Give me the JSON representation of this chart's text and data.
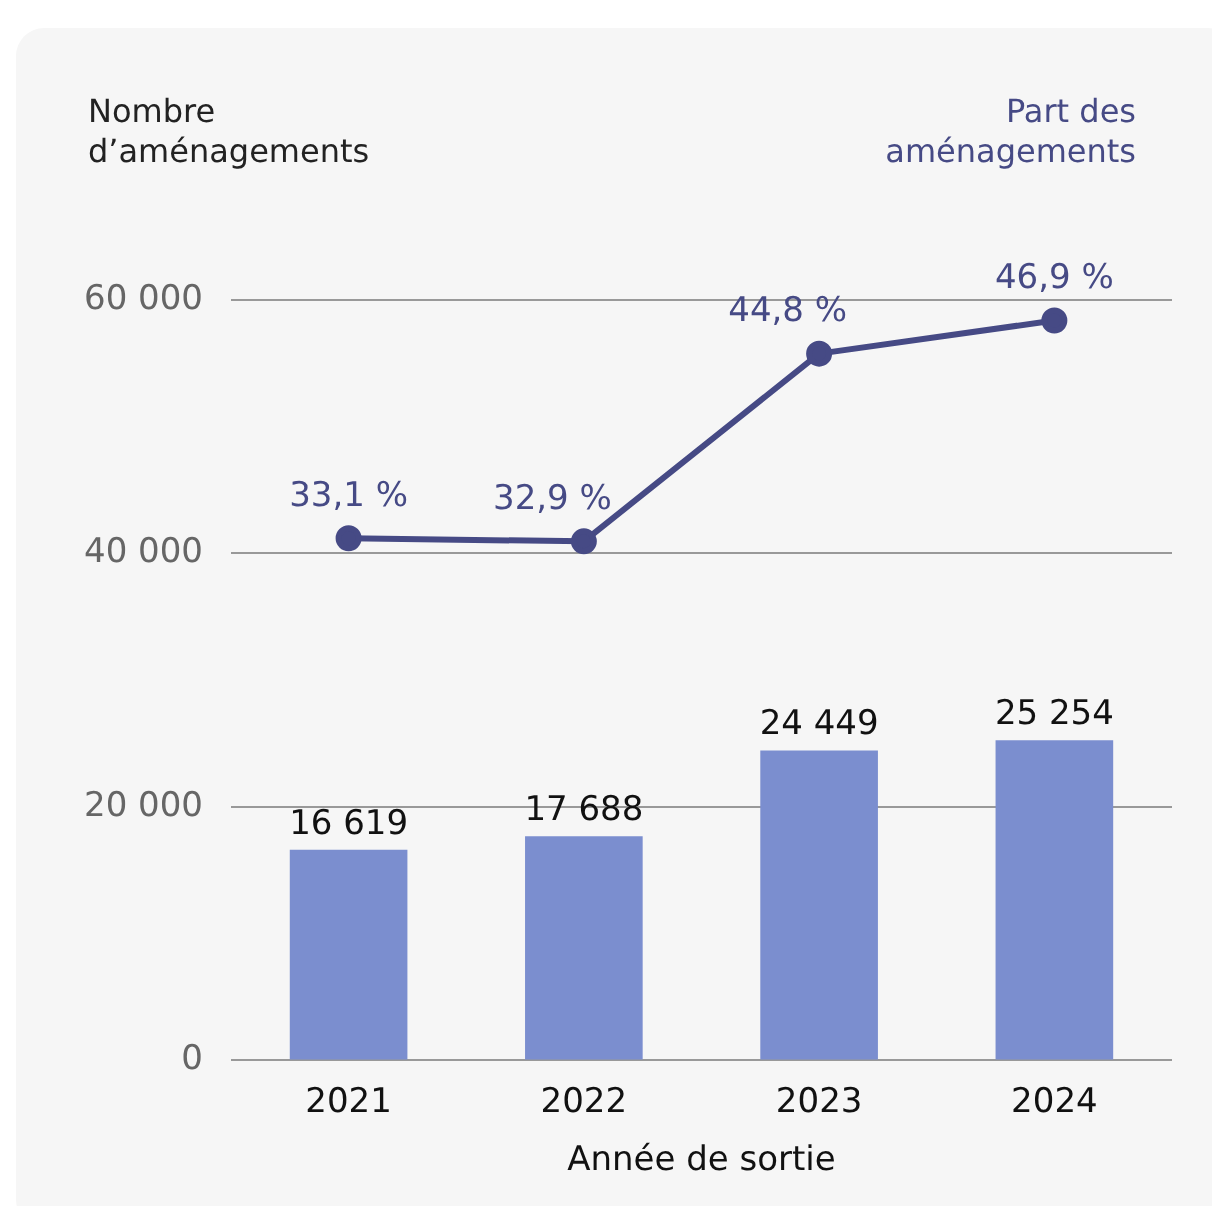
{
  "chart_data": {
    "type": "bar",
    "ylabel": "Nombre d’aménagements",
    "y2label": "Part des aménagements",
    "xlabel": "Année de sortie",
    "categories": [
      "2021",
      "2022",
      "2023",
      "2024"
    ],
    "series": [
      {
        "color": "#7b8ecf",
        "values": [
          16619,
          17688,
          24449,
          25254
        ],
        "value_labels": [
          "16 619",
          "17 688",
          "24 449",
          "25 254"
        ]
      },
      {
        "type": "line",
        "axis": "y2",
        "color": "#464a85",
        "values": [
          33.1,
          32.9,
          44.8,
          46.9
        ],
        "value_labels": [
          "33,1 %",
          "32,9 %",
          "44,8 %",
          "46,9 %"
        ]
      }
    ],
    "ylim": [
      0,
      60000
    ],
    "yticks": [
      0,
      {
        "value": 20000,
        "label": "20 000"
      },
      {
        "value": 40000,
        "label": "40 000"
      },
      {
        "value": 60000,
        "label": "60 000"
      }
    ],
    "y2lim": [
      0,
      48.2
    ],
    "grid": "y",
    "legend": false,
    "marker": "circle",
    "line_style": "solid"
  }
}
